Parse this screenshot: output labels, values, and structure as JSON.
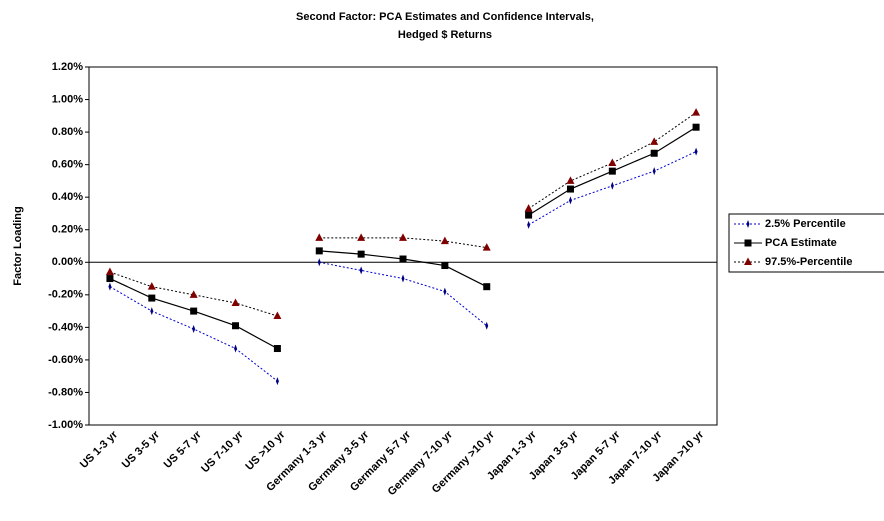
{
  "chart_data": {
    "type": "line",
    "title": [
      "Second Factor: PCA Estimates and Confidence Intervals,",
      "Hedged $ Returns"
    ],
    "y_label": "Factor Loading",
    "categories": [
      "US 1-3 yr",
      "US 3-5 yr",
      "US 5-7 yr",
      "US 7-10 yr",
      "US >10 yr",
      "Germany 1-3 yr",
      "Germany 3-5 yr",
      "Germany 5-7 yr",
      "Germany 7-10 yr",
      "Germany >10 yr",
      "Japan 1-3 yr",
      "Japan 3-5 yr",
      "Japan 5-7 yr",
      "Japan 7-10 yr",
      "Japan >10 yr"
    ],
    "series": [
      {
        "name": "2.5% Percentile",
        "color": "#0000cc",
        "marker_color": "#000080",
        "marker": "dash",
        "dashed": true,
        "values": [
          -0.15,
          -0.3,
          -0.41,
          -0.53,
          -0.73,
          0.0,
          -0.05,
          -0.1,
          -0.18,
          -0.39,
          0.23,
          0.38,
          0.47,
          0.56,
          0.68
        ]
      },
      {
        "name": "PCA Estimate",
        "color": "#000000",
        "marker_color": "#000000",
        "marker": "square",
        "dashed": false,
        "values": [
          -0.1,
          -0.22,
          -0.3,
          -0.39,
          -0.53,
          0.07,
          0.05,
          0.02,
          -0.02,
          -0.15,
          0.29,
          0.45,
          0.56,
          0.67,
          0.83
        ]
      },
      {
        "name": "97.5%-Percentile",
        "color": "#000000",
        "marker_color": "#800000",
        "marker": "triangle",
        "dashed": true,
        "values": [
          -0.06,
          -0.15,
          -0.2,
          -0.25,
          -0.33,
          0.15,
          0.15,
          0.15,
          0.13,
          0.09,
          0.33,
          0.5,
          0.61,
          0.74,
          0.92
        ]
      }
    ],
    "ylim": [
      -1.0,
      1.2
    ],
    "yticks": [
      {
        "value": -1.0,
        "label": "-1.00%"
      },
      {
        "value": -0.8,
        "label": "-0.80%"
      },
      {
        "value": -0.6,
        "label": "-0.60%"
      },
      {
        "value": -0.4,
        "label": "-0.40%"
      },
      {
        "value": -0.2,
        "label": "-0.20%"
      },
      {
        "value": 0,
        "label": "0.00%"
      },
      {
        "value": 0.2,
        "label": "0.20%"
      },
      {
        "value": 0.4,
        "label": "0.40%"
      },
      {
        "value": 0.6,
        "label": "0.60%"
      },
      {
        "value": 0.8,
        "label": "0.80%"
      },
      {
        "value": 1.0,
        "label": "1.00%"
      },
      {
        "value": 1.2,
        "label": "1.20%"
      }
    ],
    "grid": false,
    "legend": "right"
  }
}
